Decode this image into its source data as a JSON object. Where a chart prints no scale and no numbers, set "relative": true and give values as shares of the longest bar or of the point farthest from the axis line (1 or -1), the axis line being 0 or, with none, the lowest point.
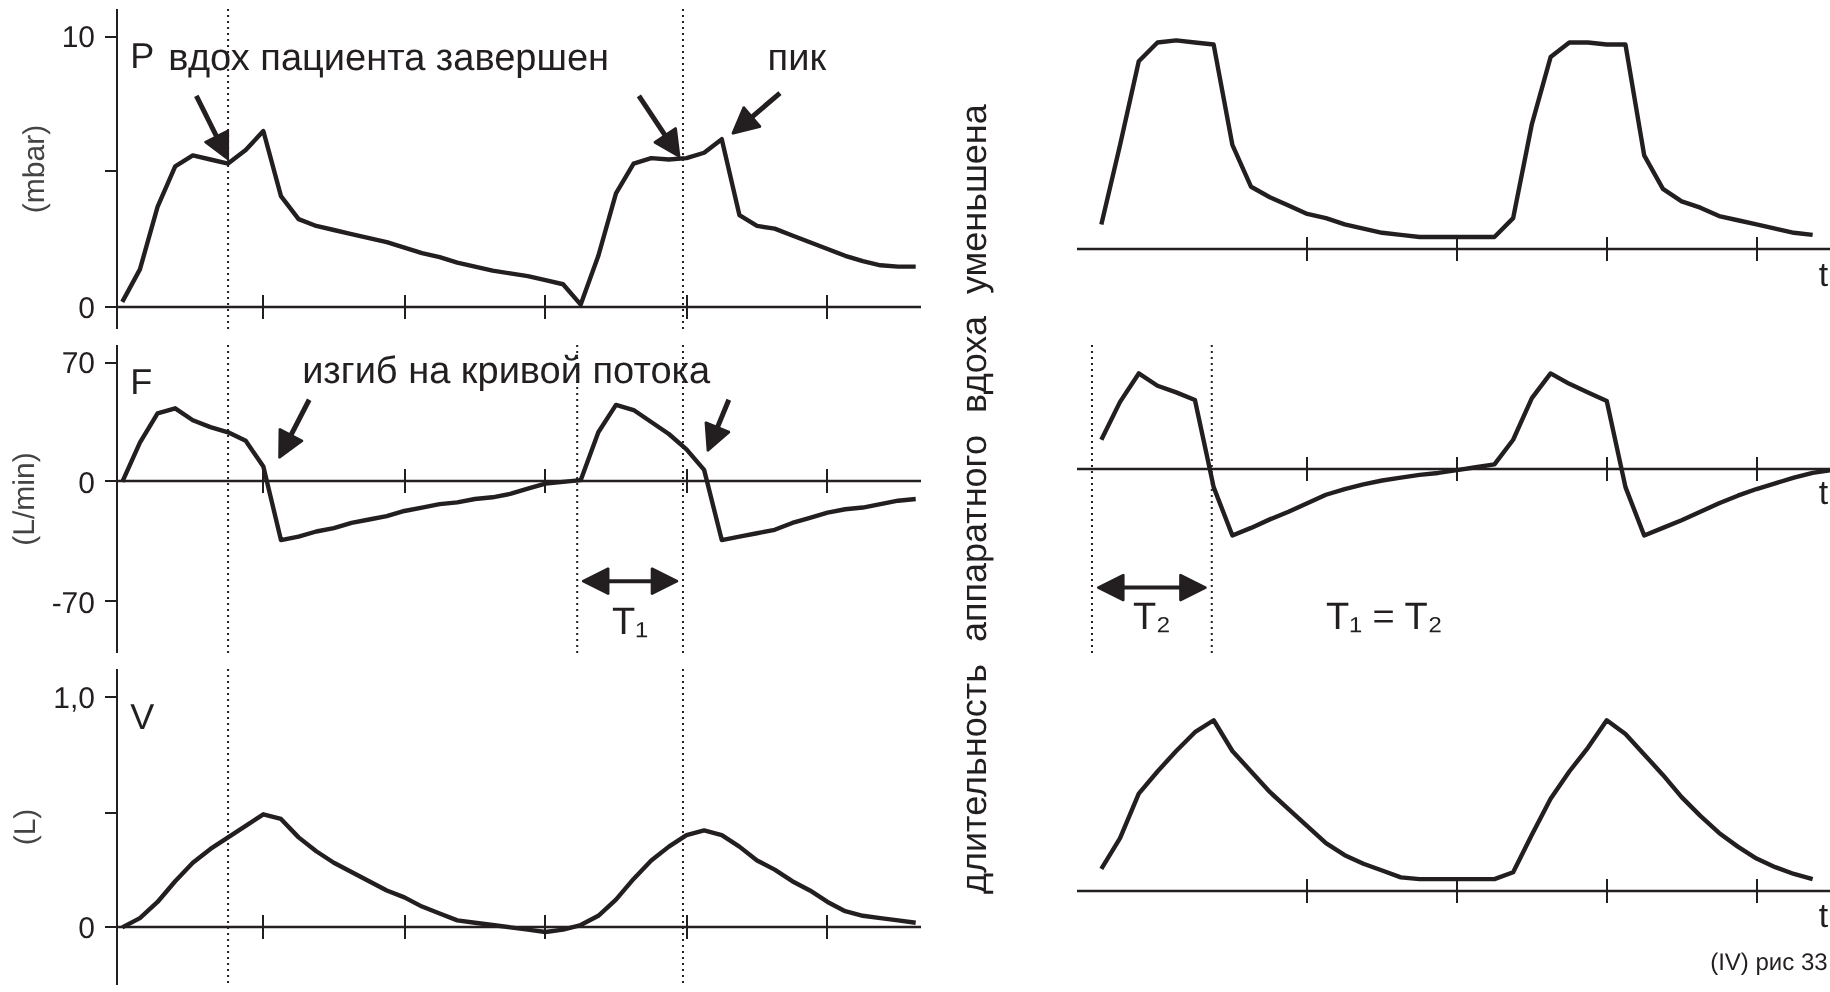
{
  "chart_data": [
    {
      "type": "line",
      "title": "P",
      "ylabel": "(mbar)",
      "ylim": [
        -0.8,
        11
      ],
      "yticks": [
        0,
        {
          "value": 5,
          "label": null
        },
        10
      ],
      "categories": [
        null,
        null,
        null,
        null,
        null,
        null,
        null,
        null,
        null,
        null,
        null,
        null,
        null,
        null,
        null,
        null,
        null,
        null,
        null,
        null,
        null,
        null,
        null,
        null,
        null,
        null,
        null,
        null,
        null,
        null,
        null,
        null,
        null,
        null,
        null,
        null,
        null,
        null,
        null,
        null,
        null,
        null,
        null,
        null,
        null,
        null
      ],
      "series": [
        {
          "color": "#231f20",
          "values": [
            0.2,
            1.4,
            3.7,
            5.2,
            5.6,
            5.45,
            5.3,
            5.8,
            6.5,
            4.1,
            3.25,
            3.0,
            2.85,
            2.7,
            2.55,
            2.4,
            2.2,
            2.0,
            1.85,
            1.65,
            1.5,
            1.35,
            1.25,
            1.15,
            1.0,
            0.85,
            0.1,
            1.9,
            4.2,
            5.3,
            5.5,
            5.45,
            5.5,
            5.7,
            6.2,
            3.4,
            3.0,
            2.9,
            2.65,
            2.4,
            2.15,
            1.9,
            1.7,
            1.55,
            1.5,
            1.5
          ]
        }
      ],
      "annotations": [
        "вдох пациента завершен",
        "пик"
      ]
    },
    {
      "type": "line",
      "relative": true,
      "xlabel": "t",
      "categories": [
        null,
        null,
        null,
        null,
        null,
        null,
        null,
        null,
        null,
        null,
        null,
        null,
        null,
        null,
        null,
        null,
        null,
        null,
        null,
        null,
        null,
        null,
        null,
        null,
        null,
        null,
        null,
        null,
        null,
        null,
        null,
        null,
        null,
        null,
        null,
        null,
        null,
        null,
        null,
        null,
        null
      ],
      "series": [
        {
          "color": "#231f20",
          "values": [
            null,
            0.12,
            0.5,
            0.9,
            0.99,
            1.0,
            0.99,
            0.98,
            0.5,
            0.3,
            0.25,
            0.21,
            0.17,
            0.15,
            0.12,
            0.1,
            0.08,
            0.07,
            0.06,
            0.06,
            0.06,
            0.06,
            0.06,
            0.15,
            0.6,
            0.92,
            0.99,
            0.99,
            0.98,
            0.98,
            0.45,
            0.29,
            0.23,
            0.2,
            0.16,
            0.14,
            0.12,
            0.1,
            0.08,
            0.07,
            null
          ]
        }
      ],
      "annotations": [
        "длительность аппаратного вдоха уменьшена"
      ]
    },
    {
      "type": "line",
      "title": "F",
      "ylabel": "(L/min)",
      "ylim": [
        -100,
        80
      ],
      "yticks": [
        -70,
        0,
        70
      ],
      "categories": [
        null,
        null,
        null,
        null,
        null,
        null,
        null,
        null,
        null,
        null,
        null,
        null,
        null,
        null,
        null,
        null,
        null,
        null,
        null,
        null,
        null,
        null,
        null,
        null,
        null,
        null,
        null,
        null,
        null,
        null,
        null,
        null,
        null,
        null,
        null,
        null,
        null,
        null,
        null,
        null,
        null,
        null,
        null,
        null,
        null,
        null
      ],
      "series": [
        {
          "color": "#231f20",
          "values": [
            0,
            23,
            40,
            43,
            36,
            32,
            29,
            24,
            9,
            -34,
            -32,
            -29,
            -27,
            -24,
            -22,
            -20,
            -17,
            -15,
            -13,
            -12,
            -10,
            -9,
            -7,
            -4,
            -1,
            0,
            1,
            29,
            45,
            42,
            35,
            28,
            19,
            7,
            -34,
            -32,
            -30,
            -28,
            -24,
            -21,
            -18,
            -16,
            -15,
            -13,
            -11,
            -10
          ]
        }
      ],
      "annotations": [
        "изгиб на кривой потока",
        "T₁"
      ]
    },
    {
      "type": "line",
      "relative": true,
      "xlabel": "t",
      "categories": [
        null,
        null,
        null,
        null,
        null,
        null,
        null,
        null,
        null,
        null,
        null,
        null,
        null,
        null,
        null,
        null,
        null,
        null,
        null,
        null,
        null,
        null,
        null,
        null,
        null,
        null,
        null,
        null,
        null,
        null,
        null,
        null,
        null,
        null,
        null,
        null,
        null,
        null,
        null,
        null,
        null
      ],
      "series": [
        {
          "color": "#231f20",
          "values": [
            null,
            0.3,
            0.7,
            1.0,
            0.87,
            0.8,
            0.72,
            -0.2,
            -0.71,
            -0.63,
            -0.54,
            -0.46,
            -0.37,
            -0.28,
            -0.22,
            -0.17,
            -0.13,
            -0.1,
            -0.07,
            -0.05,
            -0.02,
            0.01,
            0.04,
            0.3,
            0.74,
            1.0,
            0.89,
            0.8,
            0.71,
            -0.2,
            -0.71,
            -0.63,
            -0.55,
            -0.46,
            -0.37,
            -0.29,
            -0.22,
            -0.16,
            -0.1,
            -0.05,
            -0.02
          ]
        }
      ],
      "annotations": [
        "T₂",
        "T₁ = T₂"
      ]
    },
    {
      "type": "line",
      "title": "V",
      "ylabel": "(L)",
      "ylim": [
        -0.25,
        1.12
      ],
      "yticks": [
        0,
        {
          "value": 0.5,
          "label": null
        },
        {
          "value": 1,
          "label": "1,0"
        }
      ],
      "categories": [
        null,
        null,
        null,
        null,
        null,
        null,
        null,
        null,
        null,
        null,
        null,
        null,
        null,
        null,
        null,
        null,
        null,
        null,
        null,
        null,
        null,
        null,
        null,
        null,
        null,
        null,
        null,
        null,
        null,
        null,
        null,
        null,
        null,
        null,
        null,
        null,
        null,
        null,
        null,
        null,
        null,
        null,
        null,
        null,
        null,
        null
      ],
      "series": [
        {
          "color": "#231f20",
          "values": [
            0,
            0.04,
            0.11,
            0.2,
            0.28,
            0.34,
            0.39,
            0.44,
            0.49,
            0.47,
            0.39,
            0.33,
            0.28,
            0.24,
            0.2,
            0.16,
            0.13,
            0.09,
            0.06,
            0.03,
            0.02,
            0.01,
            0,
            -0.01,
            -0.02,
            -0.01,
            0.01,
            0.05,
            0.12,
            0.21,
            0.29,
            0.35,
            0.4,
            0.42,
            0.4,
            0.35,
            0.29,
            0.25,
            0.2,
            0.16,
            0.11,
            0.07,
            0.05,
            0.04,
            0.03,
            0.02
          ]
        }
      ]
    },
    {
      "type": "line",
      "relative": true,
      "xlabel": "t",
      "categories": [
        null,
        null,
        null,
        null,
        null,
        null,
        null,
        null,
        null,
        null,
        null,
        null,
        null,
        null,
        null,
        null,
        null,
        null,
        null,
        null,
        null,
        null,
        null,
        null,
        null,
        null,
        null,
        null,
        null,
        null,
        null,
        null,
        null,
        null,
        null,
        null,
        null,
        null,
        null,
        null,
        null
      ],
      "series": [
        {
          "color": "#231f20",
          "values": [
            null,
            0.13,
            0.31,
            0.57,
            0.7,
            0.82,
            0.93,
            1.0,
            0.82,
            0.7,
            0.58,
            0.48,
            0.38,
            0.28,
            0.21,
            0.16,
            0.12,
            0.08,
            0.07,
            0.07,
            0.07,
            0.07,
            0.07,
            0.11,
            0.33,
            0.54,
            0.7,
            0.84,
            1.0,
            0.92,
            0.8,
            0.68,
            0.55,
            0.44,
            0.34,
            0.26,
            0.19,
            0.14,
            0.1,
            0.07,
            null
          ]
        }
      ],
      "annotations": [
        "(IV) рис 33"
      ]
    }
  ]
}
